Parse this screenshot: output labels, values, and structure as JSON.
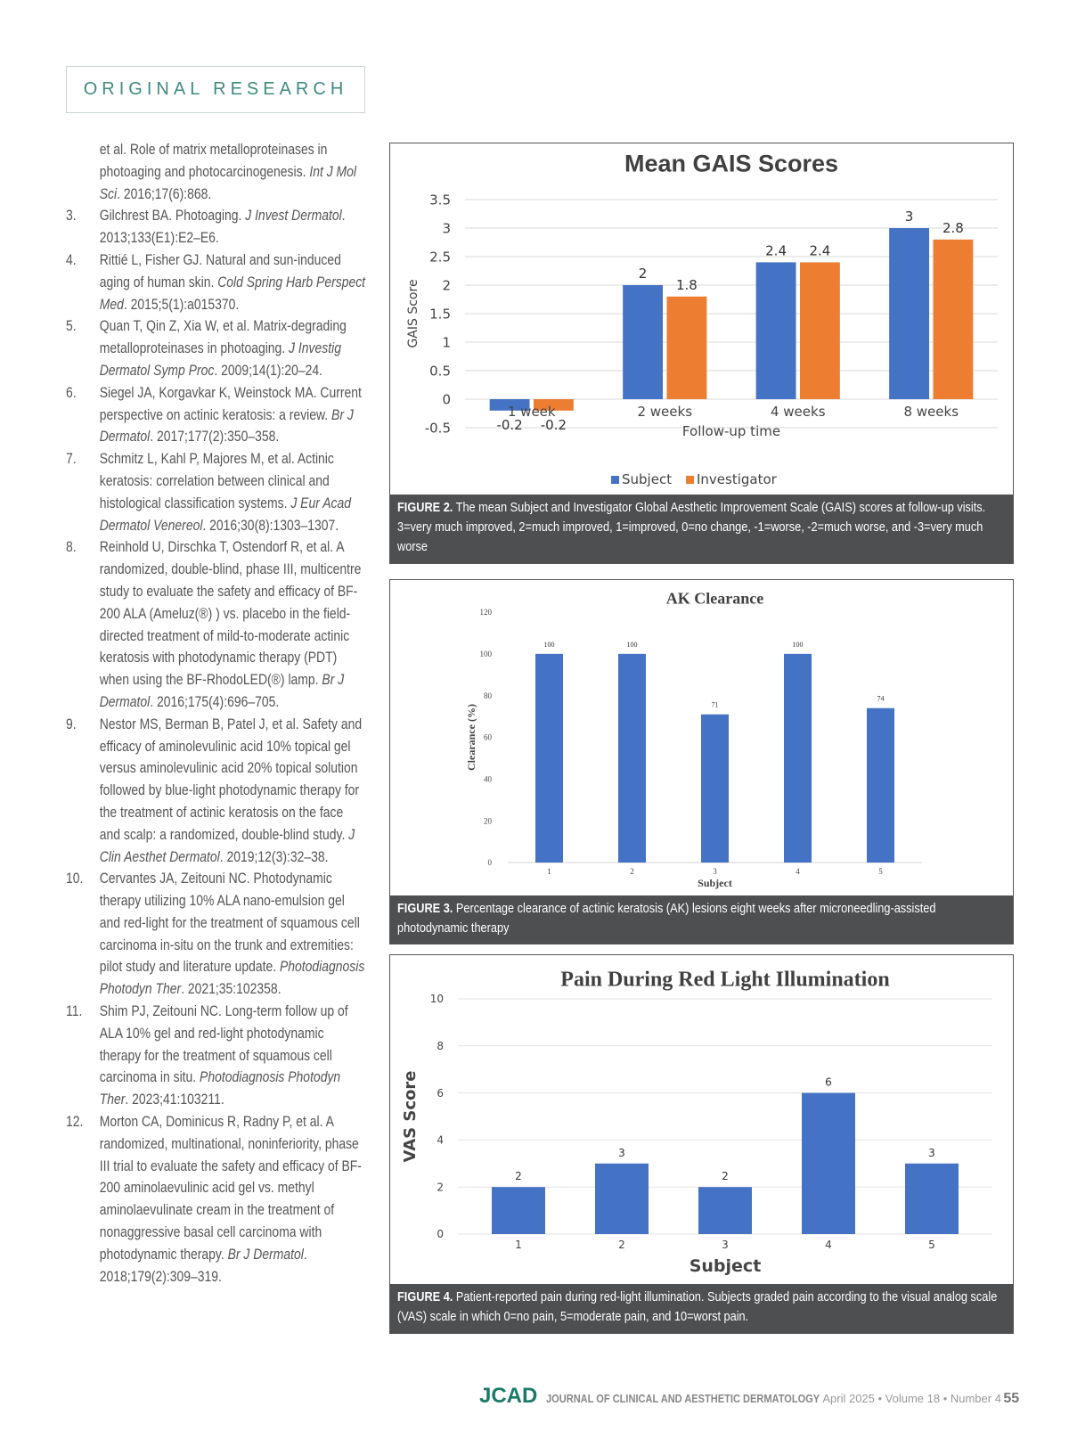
{
  "header": {
    "section_label": "ORIGINAL RESEARCH"
  },
  "references": [
    {
      "num": "",
      "parts": [
        {
          "t": "et al. Role of matrix metalloproteinases in photoaging and photocarcinogenesis. "
        },
        {
          "t": "Int J Mol Sci",
          "i": true
        },
        {
          "t": ". 2016;17(6):868."
        }
      ]
    },
    {
      "num": "3.",
      "parts": [
        {
          "t": "Gilchrest BA. Photoaging. "
        },
        {
          "t": "J Invest Dermatol",
          "i": true
        },
        {
          "t": ". 2013;133(E1):E2–E6."
        }
      ]
    },
    {
      "num": "4.",
      "parts": [
        {
          "t": "Rittié L, Fisher GJ. Natural and sun-induced aging of human skin. "
        },
        {
          "t": "Cold Spring Harb Perspect Med",
          "i": true
        },
        {
          "t": ". 2015;5(1):a015370."
        }
      ]
    },
    {
      "num": "5.",
      "parts": [
        {
          "t": "Quan T, Qin Z, Xia W, et al. Matrix-degrading metalloproteinases in photoaging. "
        },
        {
          "t": "J Investig Dermatol Symp Proc",
          "i": true
        },
        {
          "t": ". 2009;14(1):20–24."
        }
      ]
    },
    {
      "num": "6.",
      "parts": [
        {
          "t": "Siegel JA, Korgavkar K, Weinstock MA. Current perspective on actinic keratosis: a review. "
        },
        {
          "t": "Br J Dermatol",
          "i": true
        },
        {
          "t": ". 2017;177(2):350–358."
        }
      ]
    },
    {
      "num": "7.",
      "parts": [
        {
          "t": "Schmitz L, Kahl P, Majores M, et al. Actinic keratosis: correlation between clinical and histological classification systems. "
        },
        {
          "t": "J Eur Acad Dermatol Venereol",
          "i": true
        },
        {
          "t": ". 2016;30(8):1303–1307."
        }
      ]
    },
    {
      "num": "8.",
      "parts": [
        {
          "t": "Reinhold U, Dirschka T, Ostendorf R, et al. A randomized, double-blind, phase III, multicentre study to evaluate the safety and efficacy of BF-200 ALA (Ameluz(®) ) vs. placebo in the field-directed treatment of mild-to-moderate actinic keratosis with photodynamic therapy (PDT) when using the BF-RhodoLED(®) lamp. "
        },
        {
          "t": "Br J Dermatol",
          "i": true
        },
        {
          "t": ". 2016;175(4):696–705."
        }
      ]
    },
    {
      "num": "9.",
      "parts": [
        {
          "t": "Nestor MS, Berman B, Patel J, et al. Safety and efficacy of aminolevulinic acid 10% topical gel versus aminolevulinic acid 20% topical solution followed by blue-light photodynamic therapy for the treatment of actinic keratosis on the face and scalp: a randomized, double-blind study. "
        },
        {
          "t": "J Clin Aesthet Dermatol",
          "i": true
        },
        {
          "t": ". 2019;12(3):32–38."
        }
      ]
    },
    {
      "num": "10.",
      "parts": [
        {
          "t": "Cervantes JA, Zeitouni NC. Photodynamic therapy utilizing 10% ALA nano-emulsion gel and red-light for the treatment of squamous cell carcinoma in-situ on the trunk and extremities: pilot study and literature update. "
        },
        {
          "t": "Photodiagnosis Photodyn Ther",
          "i": true
        },
        {
          "t": ". 2021;35:102358."
        }
      ]
    },
    {
      "num": "11.",
      "parts": [
        {
          "t": "Shim PJ, Zeitouni NC. Long-term follow up of ALA 10% gel and red-light photodynamic therapy for the treatment of squamous cell carcinoma in situ. "
        },
        {
          "t": "Photodiagnosis Photodyn Ther",
          "i": true
        },
        {
          "t": ". 2023;41:103211."
        }
      ]
    },
    {
      "num": "12.",
      "parts": [
        {
          "t": "Morton CA, Dominicus R, Radny P, et al. A randomized, multinational, noninferiority, phase III trial to evaluate the safety and efficacy of BF-200 aminolaevulinic acid gel vs. methyl aminolaevulinate cream in the treatment of nonaggressive basal cell carcinoma with photodynamic therapy. "
        },
        {
          "t": "Br J Dermatol",
          "i": true
        },
        {
          "t": ". 2018;179(2):309–319."
        }
      ]
    }
  ],
  "figures": [
    {
      "label": "FIGURE 2.",
      "caption": " The mean Subject and Investigator Global Aesthetic Improvement Scale (GAIS) scores at follow-up visits. 3=very much improved, 2=much improved, 1=improved, 0=no change, -1=worse, -2=much worse, and -3=very much worse"
    },
    {
      "label": "FIGURE 3.",
      "caption": " Percentage clearance of actinic keratosis (AK) lesions eight weeks after microneedling-assisted photodynamic therapy"
    },
    {
      "label": "FIGURE 4.",
      "caption": " Patient-reported pain during red-light illumination. Subjects graded pain according to the visual analog scale (VAS) scale in which 0=no pain, 5=moderate pain, and 10=worst pain."
    }
  ],
  "chart_data": [
    {
      "type": "bar",
      "title": "Mean GAIS Scores",
      "xlabel": "Follow-up time",
      "ylabel": "GAIS Score",
      "categories": [
        "1 week",
        "2 weeks",
        "4 weeks",
        "8 weeks"
      ],
      "series": [
        {
          "name": "Subject",
          "color": "#4472c4",
          "values": [
            -0.2,
            2,
            2.4,
            3
          ]
        },
        {
          "name": "Investigator",
          "color": "#ed7d31",
          "values": [
            -0.2,
            1.8,
            2.4,
            2.8
          ]
        }
      ],
      "ylim": [
        -0.5,
        3.5
      ],
      "yticks": [
        "-0.5",
        "0",
        "0.5",
        "1",
        "1.5",
        "2",
        "2.5",
        "3",
        "3.5"
      ],
      "grid": true,
      "legend": "bottom"
    },
    {
      "type": "bar",
      "title": "AK Clearance",
      "xlabel": "Subject",
      "ylabel": "Clearance (%)",
      "categories": [
        "1",
        "2",
        "3",
        "4",
        "5"
      ],
      "series": [
        {
          "name": "Clearance",
          "color": "#4472c4",
          "values": [
            100,
            100,
            71,
            100,
            74
          ]
        }
      ],
      "ylim": [
        0,
        120
      ],
      "yticks": [
        "0",
        "20",
        "40",
        "60",
        "80",
        "100",
        "120"
      ],
      "grid": false
    },
    {
      "type": "bar",
      "title": "Pain During Red Light Illumination",
      "xlabel": "Subject",
      "ylabel": "VAS Score",
      "categories": [
        "1",
        "2",
        "3",
        "4",
        "5"
      ],
      "series": [
        {
          "name": "VAS",
          "color": "#4472c4",
          "values": [
            2,
            3,
            2,
            6,
            3
          ]
        }
      ],
      "ylim": [
        0,
        10
      ],
      "yticks": [
        "0",
        "2",
        "4",
        "6",
        "8",
        "10"
      ],
      "grid": true
    }
  ],
  "footer": {
    "logo": "JCAD",
    "journal": "JOURNAL OF CLINICAL AND AESTHETIC DERMATOLOGY",
    "issue": "April 2025 • Volume 18 • Number 4",
    "page": "55"
  }
}
